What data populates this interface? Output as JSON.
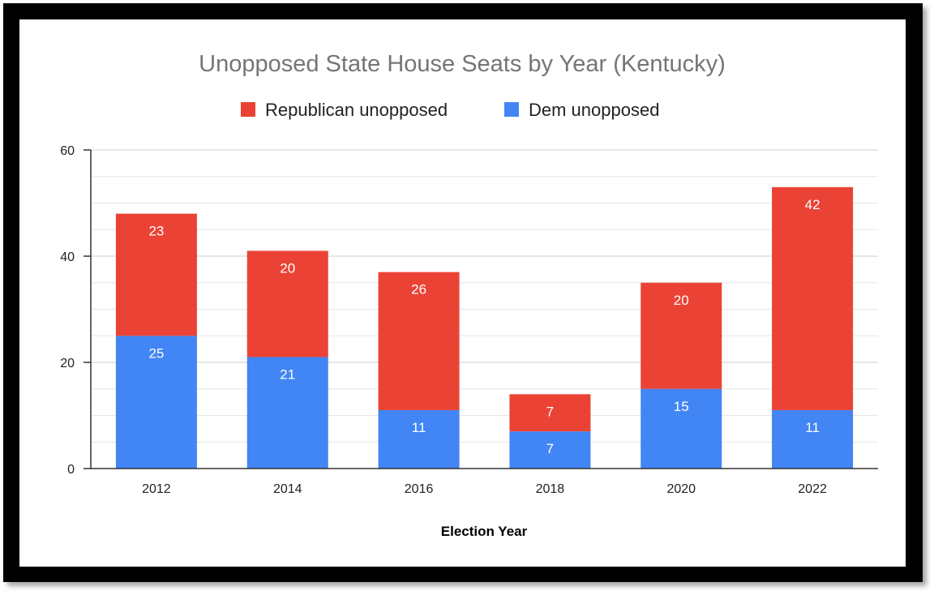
{
  "chart_data": {
    "type": "bar",
    "stacked": true,
    "title": "Unopposed State House Seats by Year (Kentucky)",
    "xlabel": "Election Year",
    "ylabel": "",
    "categories": [
      "2012",
      "2014",
      "2016",
      "2018",
      "2020",
      "2022"
    ],
    "series": [
      {
        "name": "Dem unopposed",
        "color": "#4285f4",
        "values": [
          25,
          21,
          11,
          7,
          15,
          11
        ]
      },
      {
        "name": "Republican unopposed",
        "color": "#ea4335",
        "values": [
          23,
          20,
          26,
          7,
          20,
          42
        ]
      }
    ],
    "legend_order": [
      "Republican unopposed",
      "Dem unopposed"
    ],
    "legend_position": "top",
    "ylim": [
      0,
      60
    ],
    "yticks": [
      0,
      20,
      40,
      60
    ],
    "grid": true,
    "data_labels": true
  }
}
